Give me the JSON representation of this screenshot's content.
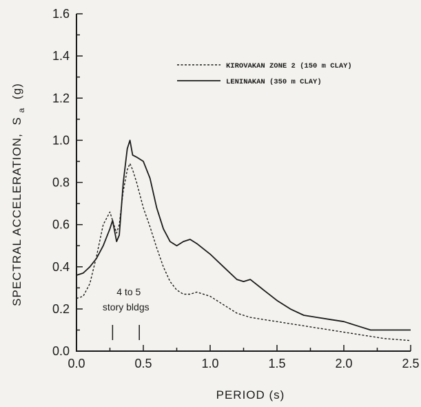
{
  "chart_data": {
    "type": "line",
    "xlabel": "PERIOD  (s)",
    "ylabel": "SPECTRAL ACCELERATION,",
    "ylabel_symbol": "S",
    "ylabel_subscript": "a",
    "ylabel_unit": "(g)",
    "xlim": [
      0.0,
      2.5
    ],
    "ylim": [
      0.0,
      1.6
    ],
    "xticks": [
      "0.0",
      "0.5",
      "1.0",
      "1.5",
      "2.0",
      "2.5"
    ],
    "yticks": [
      "0.0",
      "0.2",
      "0.4",
      "0.6",
      "0.8",
      "1.0",
      "1.2",
      "1.4",
      "1.6"
    ],
    "grid": false,
    "legend_position": "top-right",
    "series": [
      {
        "name": "KIROVAKAN ZONE 2 (150 m CLAY)",
        "style": "dashed",
        "x": [
          0.0,
          0.05,
          0.1,
          0.15,
          0.2,
          0.25,
          0.27,
          0.3,
          0.32,
          0.35,
          0.38,
          0.4,
          0.42,
          0.45,
          0.5,
          0.55,
          0.6,
          0.65,
          0.7,
          0.75,
          0.8,
          0.85,
          0.9,
          1.0,
          1.1,
          1.2,
          1.3,
          1.4,
          1.5,
          1.6,
          1.7,
          1.8,
          1.9,
          2.0,
          2.1,
          2.2,
          2.3,
          2.4,
          2.5
        ],
        "y": [
          0.25,
          0.26,
          0.32,
          0.45,
          0.6,
          0.66,
          0.62,
          0.56,
          0.6,
          0.76,
          0.86,
          0.89,
          0.86,
          0.8,
          0.68,
          0.59,
          0.49,
          0.4,
          0.33,
          0.29,
          0.27,
          0.27,
          0.28,
          0.26,
          0.22,
          0.18,
          0.16,
          0.15,
          0.14,
          0.13,
          0.12,
          0.11,
          0.1,
          0.09,
          0.08,
          0.07,
          0.06,
          0.055,
          0.05
        ]
      },
      {
        "name": "LENINAKAN (350 m CLAY)",
        "style": "solid",
        "x": [
          0.0,
          0.05,
          0.1,
          0.15,
          0.2,
          0.25,
          0.27,
          0.3,
          0.32,
          0.35,
          0.38,
          0.4,
          0.42,
          0.45,
          0.5,
          0.55,
          0.6,
          0.65,
          0.7,
          0.75,
          0.8,
          0.85,
          0.9,
          1.0,
          1.1,
          1.2,
          1.25,
          1.3,
          1.4,
          1.5,
          1.6,
          1.7,
          1.8,
          1.9,
          2.0,
          2.1,
          2.2,
          2.3,
          2.4,
          2.5
        ],
        "y": [
          0.36,
          0.37,
          0.4,
          0.44,
          0.5,
          0.58,
          0.62,
          0.52,
          0.55,
          0.8,
          0.96,
          1.0,
          0.93,
          0.92,
          0.9,
          0.82,
          0.68,
          0.58,
          0.52,
          0.5,
          0.52,
          0.53,
          0.51,
          0.46,
          0.4,
          0.34,
          0.33,
          0.34,
          0.29,
          0.24,
          0.2,
          0.17,
          0.16,
          0.15,
          0.14,
          0.12,
          0.1,
          0.1,
          0.1,
          0.1
        ]
      }
    ],
    "annotations": [
      {
        "text_line1": "4 to 5",
        "text_line2": "story bldgs",
        "x_markers": [
          0.27,
          0.47
        ]
      }
    ]
  }
}
